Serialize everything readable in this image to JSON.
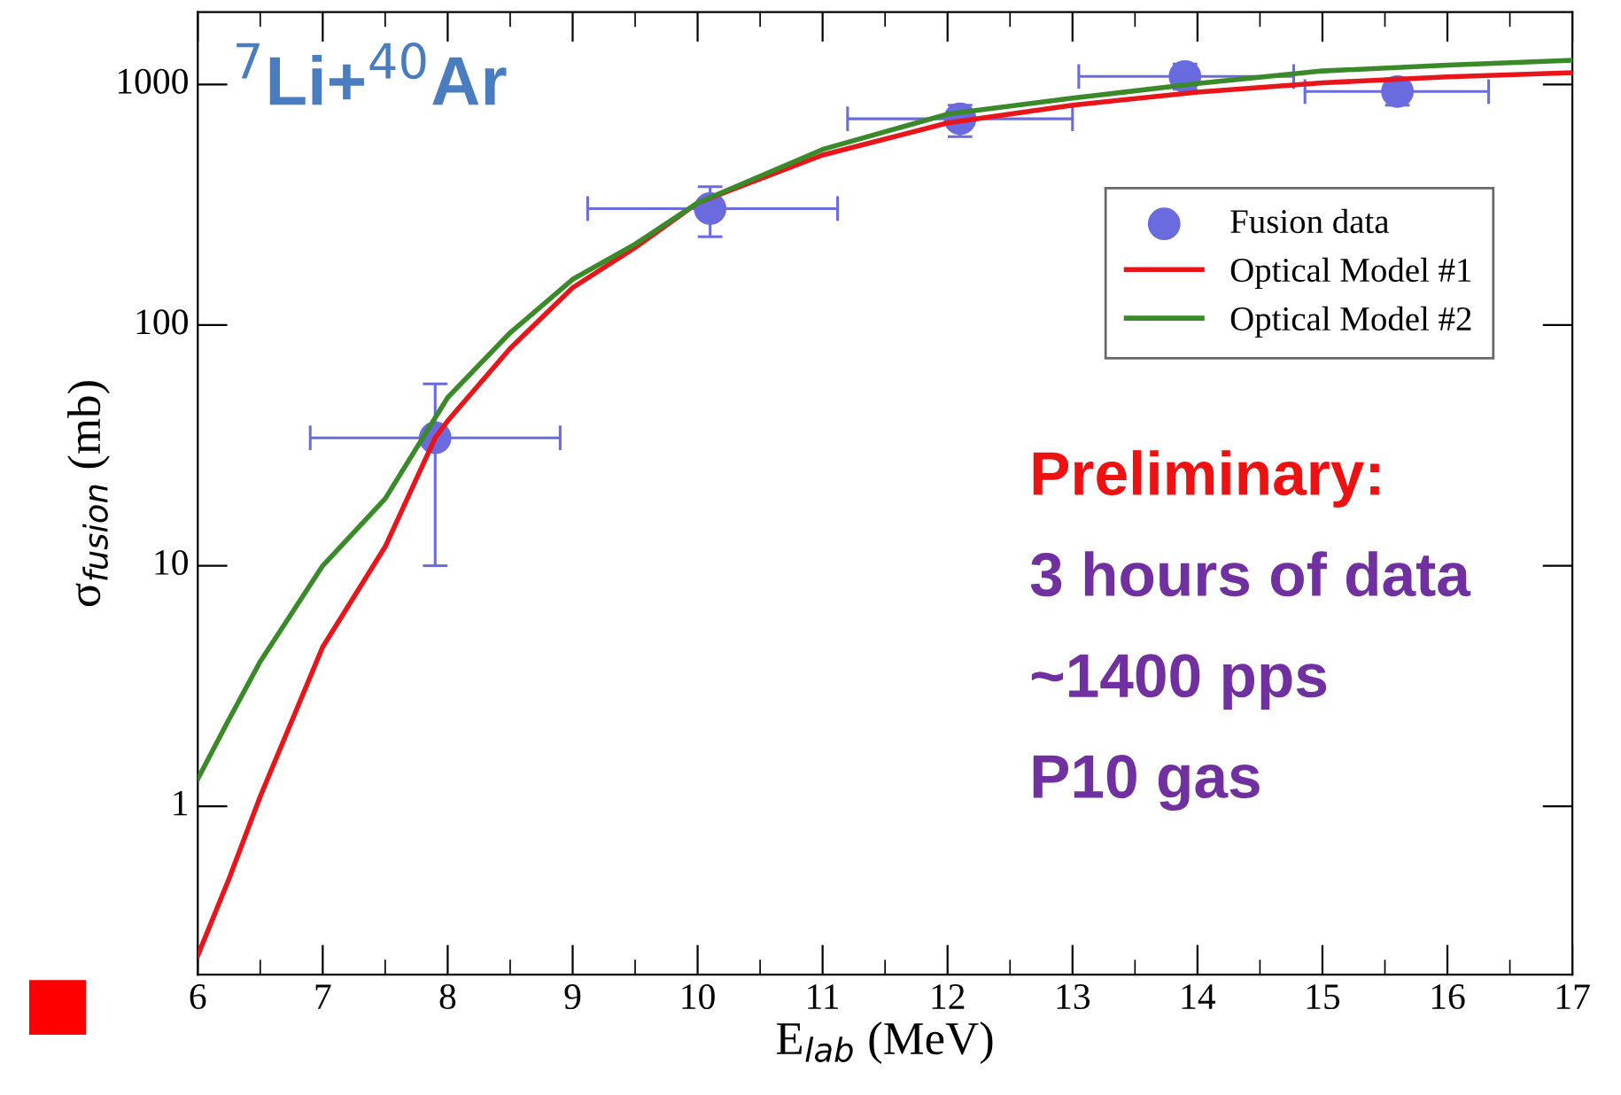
{
  "chart_data": {
    "type": "line",
    "title": "$^{7}$Li+$^{40}$Ar",
    "xlabel": "E$_{lab}$ (MeV)",
    "ylabel": "σ$_{fusion}$ (mb)",
    "log": "y",
    "xlim": [
      6,
      17
    ],
    "ylim": [
      0.2,
      2000
    ],
    "xticks": [
      6,
      7,
      8,
      9,
      10,
      11,
      12,
      13,
      14,
      15,
      16,
      17
    ],
    "yticks": [
      1,
      10,
      100,
      1000
    ],
    "grid": false,
    "legend": "top right",
    "annotations": [
      "Preliminary:",
      "3 hours of data",
      "~1400 pps",
      "P10 gas"
    ],
    "series": [
      {
        "name": "Fusion data",
        "type": "scatter",
        "color": "#6b6be0",
        "marker": "circle",
        "x": [
          7.9,
          10.1,
          12.1,
          13.9,
          15.6
        ],
        "values": [
          34,
          305,
          720,
          1080,
          935
        ],
        "errors": [
          [
            10,
            57
          ],
          [
            233,
            376
          ],
          [
            607,
            820
          ],
          [
            955,
            1217
          ],
          [
            820,
            1058
          ]
        ],
        "xerrors": [
          [
            6.9,
            8.9
          ],
          [
            9.12,
            11.12
          ],
          [
            11.2,
            13.0
          ],
          [
            13.05,
            14.77
          ],
          [
            14.86,
            16.33
          ]
        ]
      },
      {
        "name": "Optical Model #1",
        "type": "line",
        "color": "#e8151b",
        "marker": "none",
        "line_style": "solid",
        "x": [
          6,
          6.25,
          6.5,
          7,
          7.5,
          7.9,
          8,
          8.5,
          9,
          9.5,
          10,
          11,
          12,
          13,
          14,
          15,
          16,
          17
        ],
        "values": [
          0.24,
          0.5,
          1.1,
          4.6,
          12,
          34,
          40,
          80,
          143,
          210,
          322,
          509,
          692,
          820,
          930,
          1016,
          1076,
          1119
        ]
      },
      {
        "name": "Optical Model #2",
        "type": "line",
        "color": "#3a8a2a",
        "marker": "none",
        "line_style": "solid",
        "x": [
          6,
          6.25,
          6.5,
          7,
          7.5,
          8,
          8.5,
          9,
          9.5,
          10,
          11,
          12,
          13,
          14,
          15,
          16,
          17
        ],
        "values": [
          1.3,
          2.3,
          4.0,
          10,
          19,
          50,
          93,
          155,
          217,
          322,
          537,
          753,
          877,
          1010,
          1138,
          1203,
          1260
        ]
      }
    ]
  }
}
